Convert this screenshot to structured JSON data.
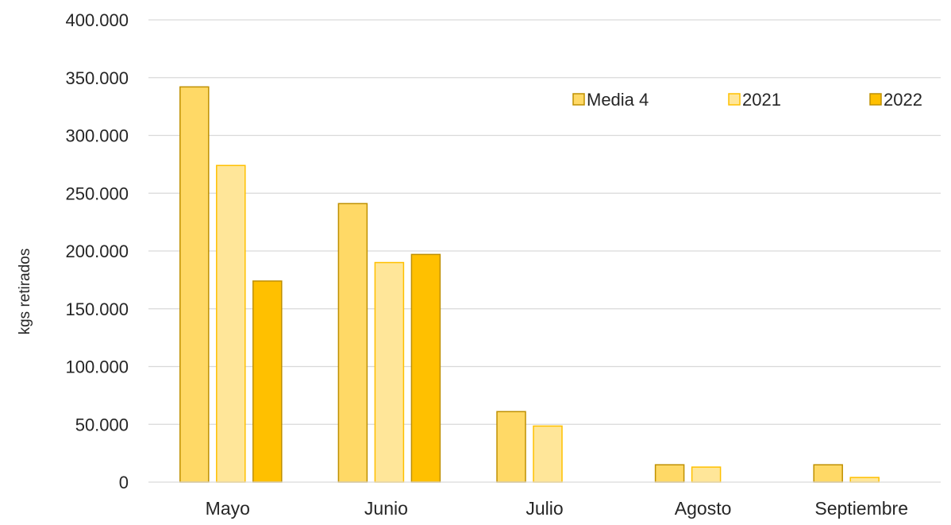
{
  "chart_data": {
    "type": "bar",
    "title": "",
    "xlabel": "",
    "ylabel": "kgs retirados",
    "categories": [
      "Mayo",
      "Junio",
      "Julio",
      "Agosto",
      "Septiembre"
    ],
    "series": [
      {
        "name": "Media 4",
        "values": [
          342000,
          241000,
          61000,
          15000,
          15000
        ],
        "color": "#FFD966",
        "stroke": "#BF9000"
      },
      {
        "name": "2021",
        "values": [
          274000,
          190000,
          48500,
          13000,
          4000
        ],
        "color": "#FFE699",
        "stroke": "#FFC000"
      },
      {
        "name": "2022",
        "values": [
          174000,
          197000,
          null,
          null,
          null
        ],
        "color": "#FFC000",
        "stroke": "#BF9000"
      }
    ],
    "ylim": [
      0,
      400000
    ],
    "yticks": [
      0,
      50000,
      100000,
      150000,
      200000,
      250000,
      300000,
      350000,
      400000
    ],
    "ytick_labels": [
      "0",
      "50.000",
      "100.000",
      "150.000",
      "200.000",
      "250.000",
      "300.000",
      "350.000",
      "400.000"
    ],
    "grid": true,
    "legend_position": "top-right"
  }
}
